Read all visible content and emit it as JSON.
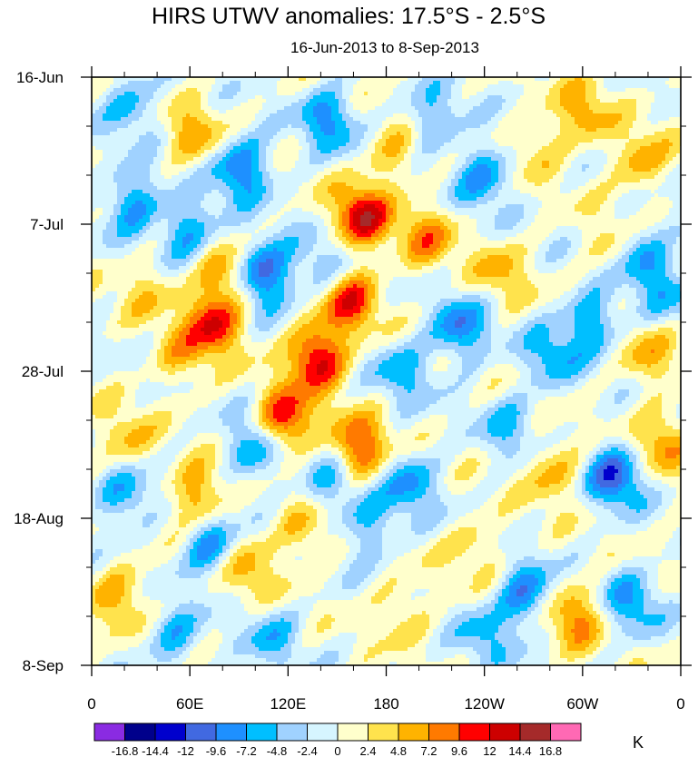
{
  "chart_data": {
    "type": "heatmap",
    "title": "HIRS UTWV anomalies: 17.5°S - 2.5°S",
    "subtitle": "16-Jun-2013 to 8-Sep-2013",
    "xlabel": "",
    "ylabel": "",
    "x_ticks": [
      "0",
      "60E",
      "120E",
      "180",
      "120W",
      "60W",
      "0"
    ],
    "x_range": [
      0,
      360
    ],
    "y_ticks": [
      "16-Jun",
      "7-Jul",
      "28-Jul",
      "18-Aug",
      "8-Sep"
    ],
    "y_range_days": [
      0,
      84
    ],
    "colorbar": {
      "unit": "K",
      "levels": [
        "-16.8",
        "-14.4",
        "-12",
        "-9.6",
        "-7.2",
        "-4.8",
        "-2.4",
        "0",
        "2.4",
        "4.8",
        "7.2",
        "9.6",
        "12",
        "14.4",
        "16.8"
      ],
      "colors": [
        "#8a2be2",
        "#00008b",
        "#0000cd",
        "#4169e1",
        "#1e90ff",
        "#00bfff",
        "#a0d2ff",
        "#d6f5ff",
        "#ffffcc",
        "#ffe34d",
        "#ffb300",
        "#ff7a00",
        "#ff0000",
        "#cd0000",
        "#a52a2a",
        "#ff69b4"
      ]
    },
    "features": [
      {
        "lon": 138,
        "day": 40,
        "value": 13.5
      },
      {
        "lon": 118,
        "day": 49,
        "value": 12.5
      },
      {
        "lon": 158,
        "day": 32,
        "value": 10.5
      },
      {
        "lon": 165,
        "day": 20,
        "value": 13
      },
      {
        "lon": 75,
        "day": 35,
        "value": 11
      },
      {
        "lon": 163,
        "day": 53,
        "value": 11
      },
      {
        "lon": 62,
        "day": 8,
        "value": 6
      },
      {
        "lon": 185,
        "day": 11,
        "value": 5
      },
      {
        "lon": 282,
        "day": 56,
        "value": 6
      },
      {
        "lon": 295,
        "day": 77,
        "value": 8
      },
      {
        "lon": 95,
        "day": 70,
        "value": 6
      },
      {
        "lon": 18,
        "day": 74,
        "value": 6
      },
      {
        "lon": 205,
        "day": 23,
        "value": 7
      },
      {
        "lon": 65,
        "day": 60,
        "value": 8
      },
      {
        "lon": 300,
        "day": 5,
        "value": 6
      },
      {
        "lon": 350,
        "day": 52,
        "value": 7
      },
      {
        "lon": 55,
        "day": 40,
        "value": 5
      },
      {
        "lon": 80,
        "day": 28,
        "value": 7
      },
      {
        "lon": 335,
        "day": 12,
        "value": 6
      },
      {
        "lon": 130,
        "day": 65,
        "value": 5
      },
      {
        "lon": 20,
        "day": 52,
        "value": 5
      },
      {
        "lon": 250,
        "day": 28,
        "value": 5
      },
      {
        "lon": 235,
        "day": 67,
        "value": 4
      },
      {
        "lon": 340,
        "day": 40,
        "value": 5
      },
      {
        "lon": 34,
        "day": 30,
        "value": 4
      },
      {
        "lon": 190,
        "day": 76,
        "value": 4
      },
      {
        "lon": 318,
        "day": 24,
        "value": 4
      },
      {
        "lon": 272,
        "day": 10,
        "value": 4
      },
      {
        "lon": 105,
        "day": 28,
        "value": -12
      },
      {
        "lon": 92,
        "day": 13,
        "value": -10
      },
      {
        "lon": 72,
        "day": 67,
        "value": -9
      },
      {
        "lon": 225,
        "day": 36,
        "value": -9
      },
      {
        "lon": 240,
        "day": 14,
        "value": -8
      },
      {
        "lon": 145,
        "day": 6,
        "value": -8
      },
      {
        "lon": 320,
        "day": 57,
        "value": -11
      },
      {
        "lon": 265,
        "day": 74,
        "value": -9
      },
      {
        "lon": 25,
        "day": 18,
        "value": -8
      },
      {
        "lon": 60,
        "day": 22,
        "value": -8
      },
      {
        "lon": 20,
        "day": 60,
        "value": -7
      },
      {
        "lon": 100,
        "day": 53,
        "value": -8
      },
      {
        "lon": 305,
        "day": 35,
        "value": -8
      },
      {
        "lon": 195,
        "day": 58,
        "value": -7
      },
      {
        "lon": 170,
        "day": 64,
        "value": -6
      },
      {
        "lon": 145,
        "day": 58,
        "value": -6
      },
      {
        "lon": 208,
        "day": 6,
        "value": -6
      },
      {
        "lon": 335,
        "day": 25,
        "value": -7
      },
      {
        "lon": 25,
        "day": 4,
        "value": -6
      },
      {
        "lon": 240,
        "day": 80,
        "value": -5
      },
      {
        "lon": 50,
        "day": 80,
        "value": -6
      },
      {
        "lon": 190,
        "day": 42,
        "value": -6
      },
      {
        "lon": 280,
        "day": 40,
        "value": -6
      },
      {
        "lon": 330,
        "day": 75,
        "value": -7
      },
      {
        "lon": 350,
        "day": 30,
        "value": -5
      },
      {
        "lon": 140,
        "day": 27,
        "value": -5
      },
      {
        "lon": 255,
        "day": 50,
        "value": -5
      },
      {
        "lon": 110,
        "day": 80,
        "value": -5
      }
    ]
  }
}
